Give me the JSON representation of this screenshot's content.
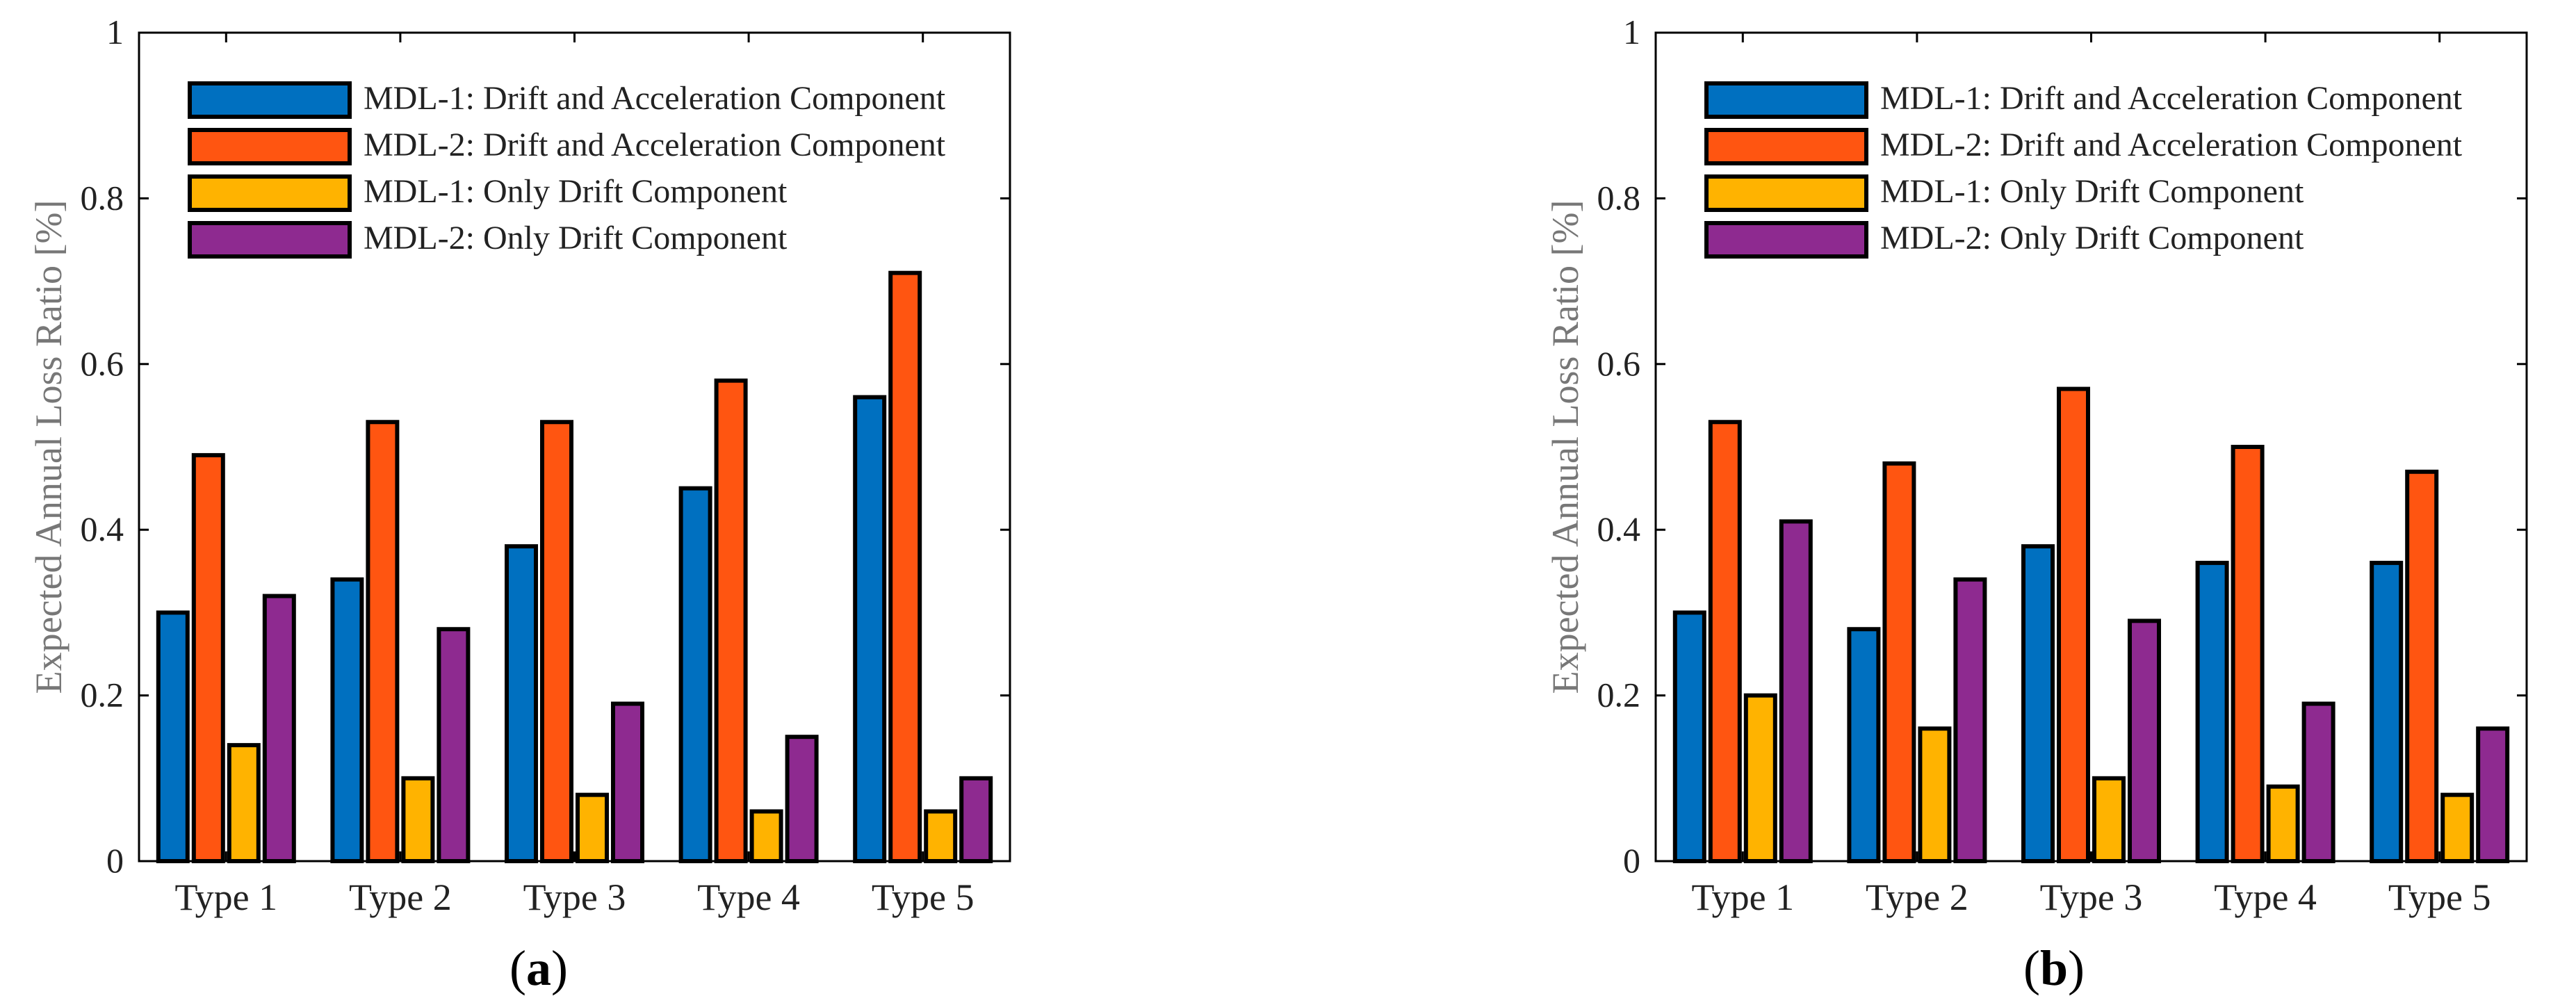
{
  "figure": {
    "colors": {
      "MDL-1: Drift and Acceleration Component": "#0070c0",
      "MDL-2: Drift and Acceleration Component": "#ff5511",
      "MDL-1: Only Drift Component": "#ffb300",
      "MDL-2: Only Drift Component": "#8e2a90"
    },
    "panels": [
      {
        "letter": "a",
        "open": "(",
        "close": ")"
      },
      {
        "letter": "b",
        "open": "(",
        "close": ")"
      }
    ]
  },
  "chart_data": [
    {
      "type": "bar",
      "panel": "(a)",
      "title": "",
      "xlabel": "",
      "ylabel": "Expected Annual Loss Ratio [%]",
      "ylim": [
        0,
        1
      ],
      "yticks": [
        "0",
        "0.2",
        "0.4",
        "0.6",
        "0.8",
        "1"
      ],
      "categories": [
        "Type 1",
        "Type 2",
        "Type 3",
        "Type 4",
        "Type 5"
      ],
      "legend_position": "top-left",
      "series": [
        {
          "name": "MDL-1: Drift and Acceleration Component",
          "values": [
            0.3,
            0.34,
            0.38,
            0.45,
            0.56
          ]
        },
        {
          "name": "MDL-2: Drift and Acceleration Component",
          "values": [
            0.49,
            0.53,
            0.53,
            0.58,
            0.71
          ]
        },
        {
          "name": "MDL-1: Only Drift Component",
          "values": [
            0.14,
            0.1,
            0.08,
            0.06,
            0.06
          ]
        },
        {
          "name": "MDL-2: Only Drift Component",
          "values": [
            0.32,
            0.28,
            0.19,
            0.15,
            0.1
          ]
        }
      ]
    },
    {
      "type": "bar",
      "panel": "(b)",
      "title": "",
      "xlabel": "",
      "ylabel": "Expected Annual Loss Ratio [%]",
      "ylim": [
        0,
        1
      ],
      "yticks": [
        "0",
        "0.2",
        "0.4",
        "0.6",
        "0.8",
        "1"
      ],
      "categories": [
        "Type 1",
        "Type 2",
        "Type 3",
        "Type 4",
        "Type 5"
      ],
      "legend_position": "top-left",
      "series": [
        {
          "name": "MDL-1: Drift and Acceleration Component",
          "values": [
            0.3,
            0.28,
            0.38,
            0.36,
            0.36
          ]
        },
        {
          "name": "MDL-2: Drift and Acceleration Component",
          "values": [
            0.53,
            0.48,
            0.57,
            0.5,
            0.47
          ]
        },
        {
          "name": "MDL-1: Only Drift Component",
          "values": [
            0.2,
            0.16,
            0.1,
            0.09,
            0.08
          ]
        },
        {
          "name": "MDL-2: Only Drift Component",
          "values": [
            0.41,
            0.34,
            0.29,
            0.19,
            0.16
          ]
        }
      ]
    }
  ]
}
